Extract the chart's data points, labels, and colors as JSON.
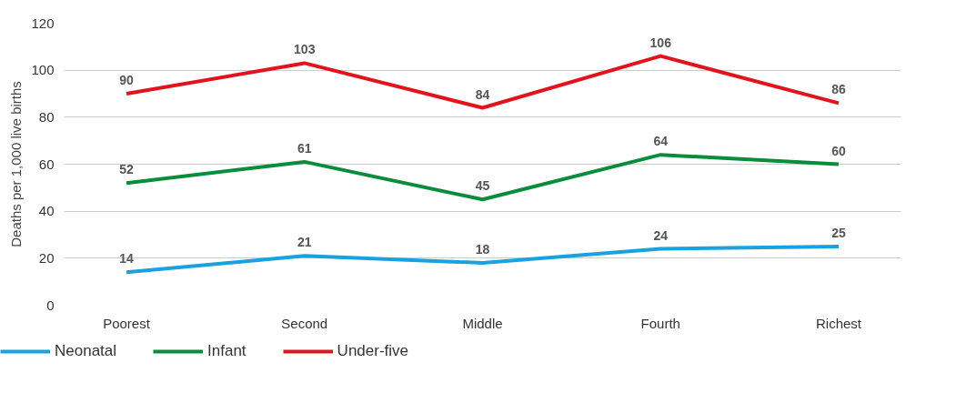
{
  "chart_data": {
    "type": "line",
    "ylabel": "Deaths per 1,000 live births",
    "categories": [
      "Poorest",
      "Second",
      "Middle",
      "Fourth",
      "Richest"
    ],
    "series": [
      {
        "name": "Neonatal",
        "color": "#1aa1e0",
        "values": [
          14,
          21,
          18,
          24,
          25
        ]
      },
      {
        "name": "Infant",
        "color": "#0a8c3c",
        "values": [
          52,
          61,
          45,
          64,
          60
        ]
      },
      {
        "name": "Under-five",
        "color": "#e1141e",
        "values": [
          90,
          103,
          84,
          106,
          86
        ]
      }
    ],
    "ylim": [
      0,
      120
    ],
    "yticks": [
      0,
      20,
      40,
      60,
      80,
      100,
      120
    ],
    "grid": "y",
    "legend": "bottom",
    "data_labels": true,
    "line_style": "solid",
    "marker": "none"
  }
}
